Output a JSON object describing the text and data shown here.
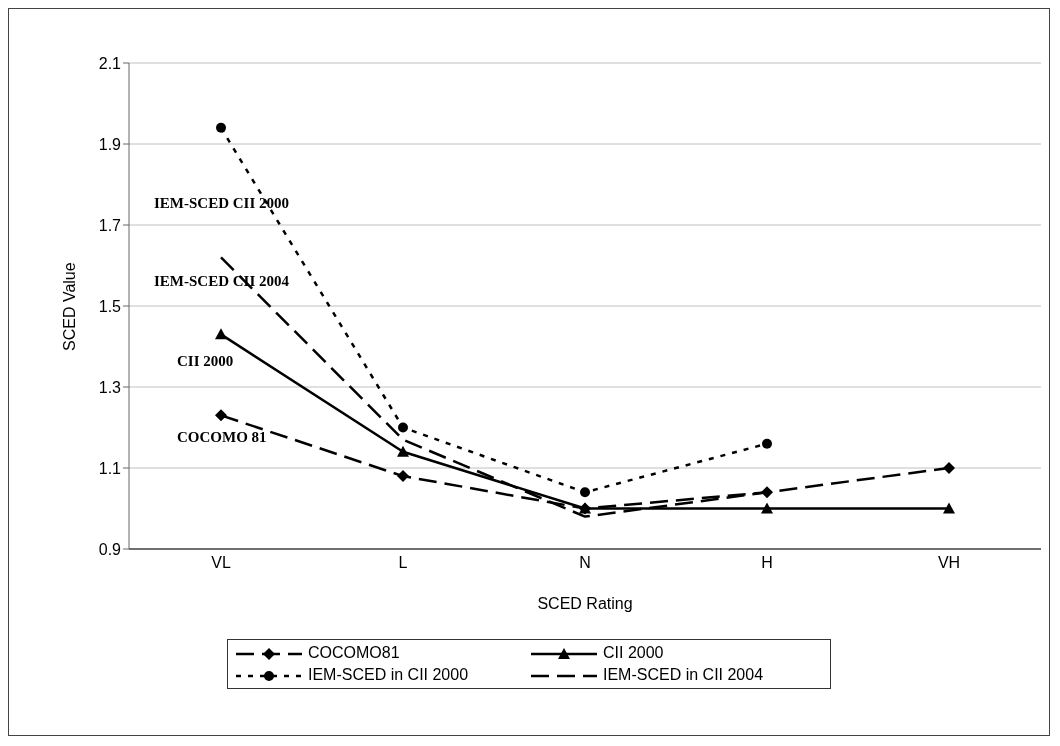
{
  "chart_data": {
    "type": "line",
    "xlabel": "SCED Rating",
    "ylabel": "SCED Value",
    "categories": [
      "VL",
      "L",
      "N",
      "H",
      "VH"
    ],
    "series": [
      {
        "name": "COCOMO81",
        "color": "#000000",
        "values": [
          1.23,
          1.08,
          1.0,
          1.04,
          1.1
        ],
        "marker": "diamond",
        "line_style": "dashed"
      },
      {
        "name": "CII 2000",
        "color": "#000000",
        "values": [
          1.43,
          1.14,
          1.0,
          1.0,
          1.0
        ],
        "marker": "triangle",
        "line_style": "solid"
      },
      {
        "name": "IEM-SCED in CII 2000",
        "color": "#000000",
        "values": [
          1.94,
          1.2,
          1.04,
          1.16,
          null
        ],
        "marker": "circle",
        "line_style": "dotted"
      },
      {
        "name": "IEM-SCED in CII 2004",
        "color": "#000000",
        "values": [
          1.62,
          1.17,
          0.98,
          1.04,
          null
        ],
        "marker": "none",
        "line_style": "dashed"
      }
    ],
    "ylim": [
      0.9,
      2.1
    ],
    "yticks": [
      0.9,
      1.1,
      1.3,
      1.5,
      1.7,
      1.9,
      2.1
    ],
    "grid": "y",
    "legend": "bottom",
    "annotations": [
      "IEM-SCED CII 2000",
      "IEM-SCED CII 2004",
      "CII 2000",
      "COCOMO 81"
    ]
  }
}
